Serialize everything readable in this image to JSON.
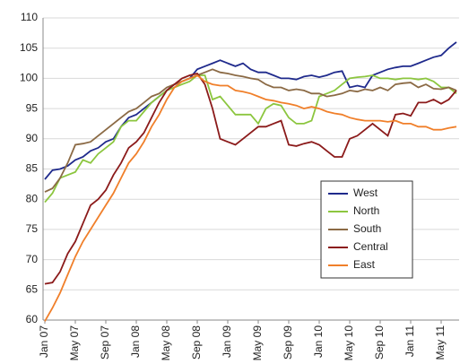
{
  "chart_data": {
    "type": "line",
    "categories": [
      "Jan 07",
      null,
      null,
      null,
      "May 07",
      null,
      null,
      null,
      "Sep 07",
      null,
      null,
      null,
      "Jan 08",
      null,
      null,
      null,
      "May 08",
      null,
      null,
      null,
      "Sep 08",
      null,
      null,
      null,
      "Jan 09",
      null,
      null,
      null,
      "May 09",
      null,
      null,
      null,
      "Sep 09",
      null,
      null,
      null,
      "Jan 10",
      null,
      null,
      null,
      "May 10",
      null,
      null,
      null,
      "Sep 10",
      null,
      null,
      null,
      "Jan 11",
      null,
      null,
      null,
      "May 11",
      null,
      null
    ],
    "series": [
      {
        "name": "West",
        "color": "#1f2a8c",
        "values": [
          83.3,
          84.8,
          85,
          85.5,
          86.5,
          87,
          88,
          88.5,
          89.5,
          90,
          92,
          93.5,
          94,
          95,
          96,
          97,
          98,
          99,
          99.5,
          100,
          101.5,
          102,
          102.5,
          103,
          102.5,
          102,
          102.5,
          101.5,
          101,
          101,
          100.5,
          100,
          100,
          99.8,
          100.3,
          100.5,
          100.2,
          100.5,
          101,
          101.2,
          98.5,
          98.8,
          98.5,
          100.5,
          101,
          101.5,
          101.8,
          102,
          102,
          102.5,
          103,
          103.5,
          103.8,
          105,
          106
        ]
      },
      {
        "name": "North",
        "color": "#8cc63f",
        "values": [
          79.5,
          81,
          83.5,
          84,
          84.5,
          86.5,
          86,
          87.5,
          88.5,
          89.5,
          92,
          93,
          93,
          94.5,
          96,
          97,
          98,
          98.5,
          99,
          99.5,
          100.5,
          100.5,
          96.5,
          97,
          95.5,
          94,
          94,
          94,
          92.5,
          95,
          95.8,
          95.5,
          93.5,
          92.5,
          92.5,
          93,
          97,
          97.5,
          98,
          99,
          100,
          100.2,
          100.3,
          100.5,
          100,
          100,
          99.8,
          100,
          100,
          99.8,
          100,
          99.5,
          98.5,
          98.5,
          97.5
        ]
      },
      {
        "name": "South",
        "color": "#8b6a45",
        "values": [
          81.2,
          81.8,
          83.5,
          86,
          89,
          89.2,
          89.5,
          90.5,
          91.5,
          92.5,
          93.5,
          94.5,
          95,
          96,
          97,
          97.5,
          98.5,
          99,
          99.5,
          100,
          100.5,
          101,
          101.5,
          101,
          100.8,
          100.5,
          100.3,
          100,
          99.8,
          99,
          98.5,
          98.5,
          98,
          98.2,
          98,
          97.5,
          97.5,
          97,
          97.2,
          97.5,
          98,
          97.8,
          98.2,
          98,
          98.5,
          98,
          99,
          99.2,
          99.3,
          98.5,
          99,
          98.3,
          98.2,
          98.5,
          98
        ]
      },
      {
        "name": "Central",
        "color": "#8b1a1a",
        "values": [
          66,
          66.2,
          68,
          71,
          73,
          76,
          79,
          80,
          81.5,
          84,
          86,
          88.5,
          89.5,
          91,
          93.5,
          96,
          98,
          99,
          100,
          100.5,
          100.8,
          99,
          95,
          90,
          89.5,
          89,
          90,
          91,
          92,
          92,
          92.5,
          93,
          89,
          88.8,
          89.2,
          89.5,
          89,
          88,
          87,
          87,
          90,
          90.5,
          91.5,
          92.5,
          91.5,
          90.5,
          94,
          94.2,
          93.8,
          96,
          96,
          96.5,
          95.8,
          96.5,
          98
        ]
      },
      {
        "name": "East",
        "color": "#f07f2a",
        "values": [
          59.8,
          62,
          64.5,
          67.5,
          70.5,
          73,
          75,
          77,
          79,
          81,
          83.5,
          86,
          87.5,
          89.5,
          92,
          94,
          96.5,
          98.5,
          99.5,
          100,
          100.5,
          99.5,
          99,
          98.8,
          98.8,
          98,
          97.8,
          97.5,
          97,
          96.5,
          96.3,
          96,
          95.8,
          95.5,
          95,
          95.3,
          95,
          94.5,
          94.2,
          94,
          93.5,
          93.2,
          93,
          93,
          93,
          92.8,
          93,
          92.5,
          92.5,
          92,
          92,
          91.5,
          91.5,
          91.8,
          92
        ]
      }
    ],
    "ylim": [
      60,
      110
    ],
    "yticks": [
      60,
      65,
      70,
      75,
      80,
      85,
      90,
      95,
      100,
      105,
      110
    ],
    "grid": true,
    "legend": "lower right"
  }
}
